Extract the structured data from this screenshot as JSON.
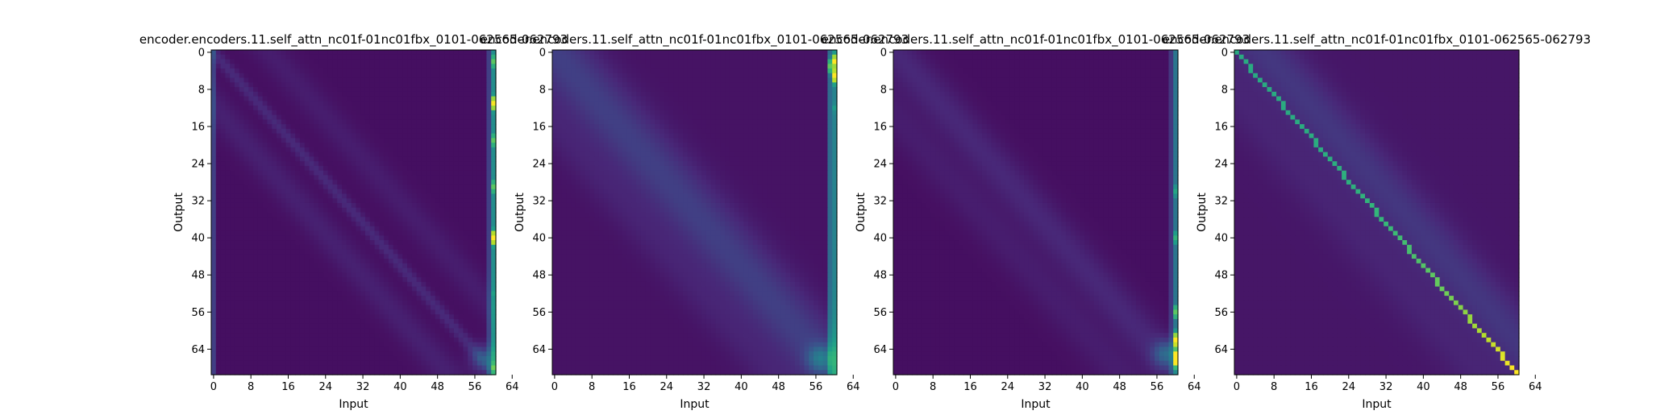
{
  "colors": {
    "background": "#ffffff",
    "viridis_stops": [
      "#440154",
      "#482878",
      "#3e4989",
      "#31688e",
      "#26828e",
      "#1f9e89",
      "#35b779",
      "#6ece58",
      "#b5de2b",
      "#fde725"
    ]
  },
  "chart_data": [
    {
      "type": "heatmap",
      "title": "encoder.encoders.11.self_attn_nc01f-01nc01fbx_0101-062565-062793",
      "xlabel": "Input",
      "ylabel": "Output",
      "xticks": [
        0,
        8,
        16,
        24,
        32,
        40,
        48,
        56,
        64
      ],
      "yticks": [
        0,
        8,
        16,
        24,
        32,
        40,
        48,
        56,
        64
      ],
      "shape": [
        70,
        61
      ],
      "colormap": "viridis",
      "vrange": [
        0,
        1
      ],
      "background_level": 0.04,
      "features": [
        {
          "kind": "diagonal",
          "offset": 0,
          "strength": 0.08,
          "width": 1.2
        },
        {
          "kind": "diagonal",
          "offset": -10,
          "strength": 0.05,
          "width": 3
        },
        {
          "kind": "diagonal",
          "offset": 12,
          "strength": 0.04,
          "width": 3
        },
        {
          "kind": "column",
          "col": 60,
          "strength": 0.45,
          "hotspots": [
            {
              "row": 2,
              "value": 0.7
            },
            {
              "row": 11,
              "value": 0.95
            },
            {
              "row": 19,
              "value": 0.7
            },
            {
              "row": 29,
              "value": 0.7
            },
            {
              "row": 40,
              "value": 1.0
            },
            {
              "row": 52,
              "value": 0.5
            },
            {
              "row": 68,
              "value": 0.6
            }
          ]
        },
        {
          "kind": "column",
          "col": 59,
          "strength": 0.15
        },
        {
          "kind": "column",
          "col": 0,
          "strength": 0.15
        },
        {
          "kind": "corner",
          "row": 66,
          "col": 58,
          "strength": 0.2
        }
      ]
    },
    {
      "type": "heatmap",
      "title": "encoder.encoders.11.self_attn_nc01f-01nc01fbx_0101-062565-062793",
      "xlabel": "Input",
      "ylabel": "Output",
      "xticks": [
        0,
        8,
        16,
        24,
        32,
        40,
        48,
        56,
        64
      ],
      "yticks": [
        0,
        8,
        16,
        24,
        32,
        40,
        48,
        56,
        64
      ],
      "shape": [
        70,
        61
      ],
      "colormap": "viridis",
      "vrange": [
        0,
        1
      ],
      "background_level": 0.05,
      "features": [
        {
          "kind": "diagonal",
          "offset": 0,
          "strength": 0.14,
          "width": 6
        },
        {
          "kind": "diagonal",
          "offset": -14,
          "strength": 0.04,
          "width": 4
        },
        {
          "kind": "column",
          "col": 60,
          "strength": 0.4,
          "hotspots": [
            {
              "row": 2,
              "value": 0.95
            },
            {
              "row": 5,
              "value": 1.0
            },
            {
              "row": 12,
              "value": 0.5
            }
          ]
        },
        {
          "kind": "column",
          "col": 59,
          "strength": 0.3,
          "hotspots": [
            {
              "row": 3,
              "value": 0.7
            }
          ]
        },
        {
          "kind": "corner",
          "row": 66,
          "col": 57,
          "strength": 0.25
        }
      ]
    },
    {
      "type": "heatmap",
      "title": "encoder.encoders.11.self_attn_nc01f-01nc01fbx_0101-062565-062793",
      "xlabel": "Input",
      "ylabel": "Output",
      "xticks": [
        0,
        8,
        16,
        24,
        32,
        40,
        48,
        56,
        64
      ],
      "yticks": [
        0,
        8,
        16,
        24,
        32,
        40,
        48,
        56,
        64
      ],
      "shape": [
        70,
        61
      ],
      "colormap": "viridis",
      "vrange": [
        0,
        1
      ],
      "background_level": 0.04,
      "features": [
        {
          "kind": "diagonal",
          "offset": 0,
          "strength": 0.07,
          "width": 4
        },
        {
          "kind": "diagonal",
          "offset": -12,
          "strength": 0.04,
          "width": 4
        },
        {
          "kind": "column",
          "col": 60,
          "strength": 0.35,
          "hotspots": [
            {
              "row": 30,
              "value": 0.55
            },
            {
              "row": 40,
              "value": 0.6
            },
            {
              "row": 56,
              "value": 0.7
            },
            {
              "row": 62,
              "value": 0.9
            },
            {
              "row": 66,
              "value": 1.0
            }
          ]
        },
        {
          "kind": "column",
          "col": 59,
          "strength": 0.12
        },
        {
          "kind": "corner",
          "row": 65,
          "col": 58,
          "strength": 0.25
        }
      ]
    },
    {
      "type": "heatmap",
      "title": "encoder.encoders.11.self_attn_nc01f-01nc01fbx_0101-062565-062793",
      "xlabel": "Input",
      "ylabel": "Output",
      "xticks": [
        0,
        8,
        16,
        24,
        32,
        40,
        48,
        56,
        64
      ],
      "yticks": [
        0,
        8,
        16,
        24,
        32,
        40,
        48,
        56,
        64
      ],
      "shape": [
        70,
        61
      ],
      "colormap": "viridis",
      "vrange": [
        0,
        1
      ],
      "background_level": 0.06,
      "features": [
        {
          "kind": "sharp_diagonal",
          "base": 0.55,
          "end_value": 0.95
        },
        {
          "kind": "diagonal",
          "offset": 6,
          "strength": 0.1,
          "width": 5
        },
        {
          "kind": "diagonal",
          "offset": -8,
          "strength": 0.04,
          "width": 5
        }
      ]
    }
  ]
}
